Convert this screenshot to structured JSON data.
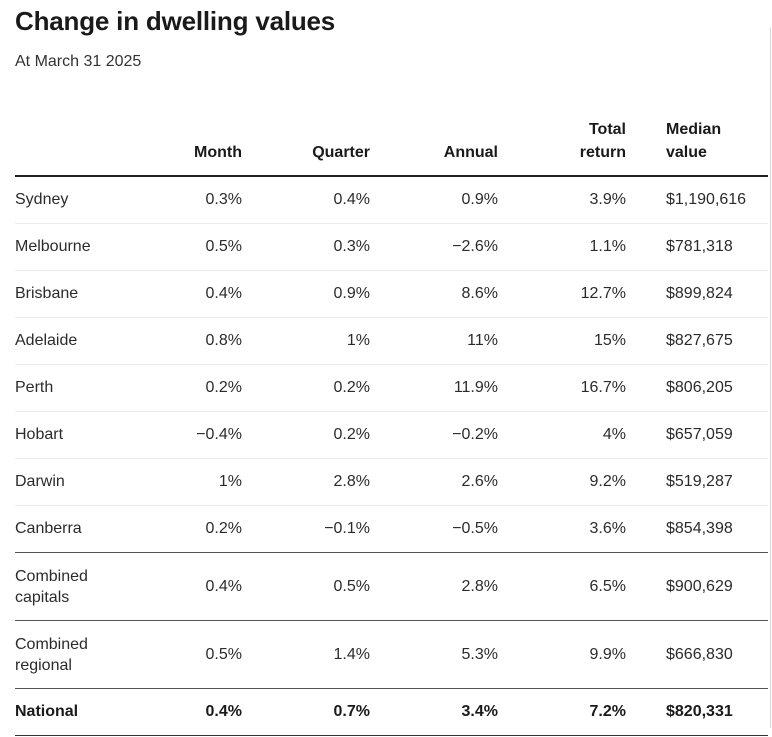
{
  "chart_data": {
    "type": "table",
    "title": "Change in dwelling values",
    "subtitle": "At March 31 2025",
    "columns": [
      {
        "key": "region",
        "label": ""
      },
      {
        "key": "month",
        "label": "Month"
      },
      {
        "key": "quarter",
        "label": "Quarter"
      },
      {
        "key": "annual",
        "label": "Annual"
      },
      {
        "key": "total",
        "label": "Total return"
      },
      {
        "key": "median",
        "label": "Median value"
      }
    ],
    "rows": [
      {
        "region": "Sydney",
        "month": "0.3%",
        "quarter": "0.4%",
        "annual": "0.9%",
        "total": "3.9%",
        "median": "$1,190,616"
      },
      {
        "region": "Melbourne",
        "month": "0.5%",
        "quarter": "0.3%",
        "annual": "−2.6%",
        "total": "1.1%",
        "median": "$781,318"
      },
      {
        "region": "Brisbane",
        "month": "0.4%",
        "quarter": "0.9%",
        "annual": "8.6%",
        "total": "12.7%",
        "median": "$899,824"
      },
      {
        "region": "Adelaide",
        "month": "0.8%",
        "quarter": "1%",
        "annual": "11%",
        "total": "15%",
        "median": "$827,675"
      },
      {
        "region": "Perth",
        "month": "0.2%",
        "quarter": "0.2%",
        "annual": "11.9%",
        "total": "16.7%",
        "median": "$806,205"
      },
      {
        "region": "Hobart",
        "month": "−0.4%",
        "quarter": "0.2%",
        "annual": "−0.2%",
        "total": "4%",
        "median": "$657,059"
      },
      {
        "region": "Darwin",
        "month": "1%",
        "quarter": "2.8%",
        "annual": "2.6%",
        "total": "9.2%",
        "median": "$519,287"
      },
      {
        "region": "Canberra",
        "month": "0.2%",
        "quarter": "−0.1%",
        "annual": "−0.5%",
        "total": "3.6%",
        "median": "$854,398"
      },
      {
        "region": "Combined capitals",
        "month": "0.4%",
        "quarter": "0.5%",
        "annual": "2.8%",
        "total": "6.5%",
        "median": "$900,629"
      },
      {
        "region": "Combined regional",
        "month": "0.5%",
        "quarter": "1.4%",
        "annual": "5.3%",
        "total": "9.9%",
        "median": "$666,830"
      },
      {
        "region": "National",
        "month": "0.4%",
        "quarter": "0.7%",
        "annual": "3.4%",
        "total": "7.2%",
        "median": "$820,331"
      }
    ]
  }
}
